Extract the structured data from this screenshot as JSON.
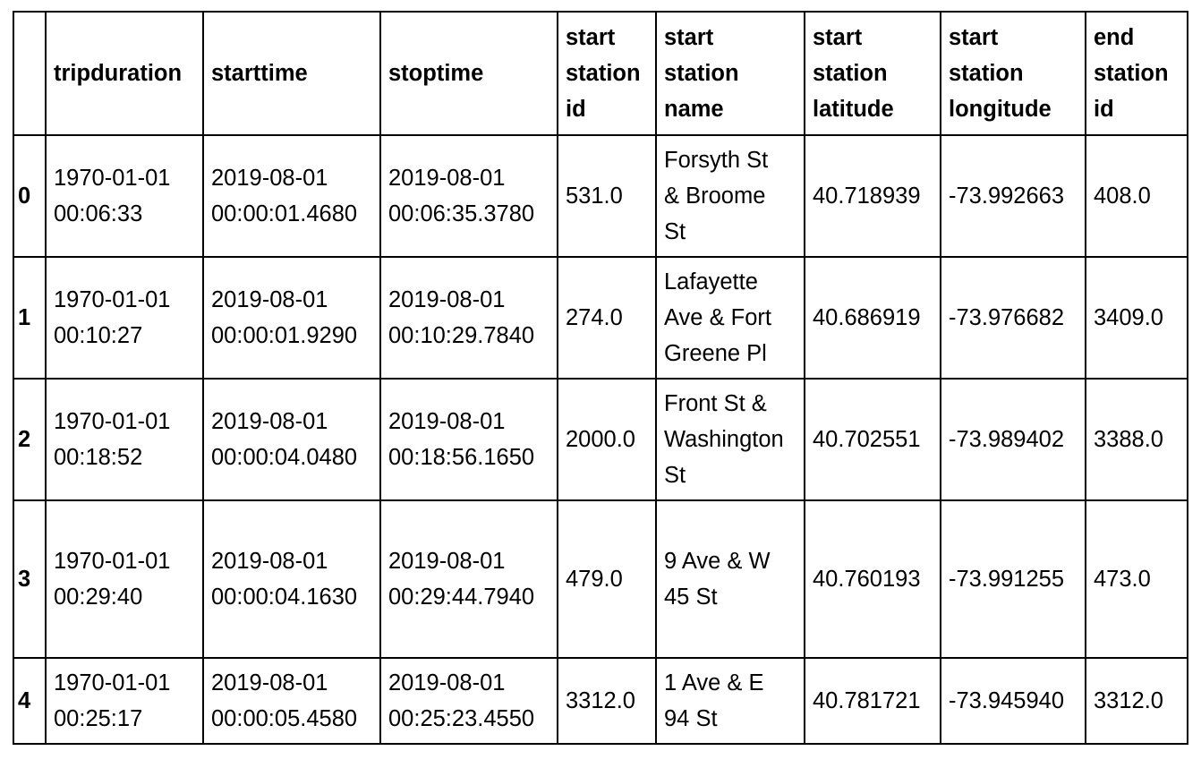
{
  "table": {
    "index_header": "",
    "columns": [
      [
        "tripduration"
      ],
      [
        "starttime"
      ],
      [
        "stoptime"
      ],
      [
        "start",
        "station",
        "id"
      ],
      [
        "start",
        "station",
        "name"
      ],
      [
        "start",
        "station",
        "latitude"
      ],
      [
        "start",
        "station",
        "longitude"
      ],
      [
        "end",
        "station",
        "id"
      ]
    ],
    "rows": [
      {
        "index": "0",
        "cells": [
          [
            "1970-01-01",
            "00:06:33"
          ],
          [
            "2019-08-01",
            "00:00:01.4680"
          ],
          [
            "2019-08-01",
            "00:06:35.3780"
          ],
          [
            "531.0"
          ],
          [
            "Forsyth St",
            "& Broome",
            "St"
          ],
          [
            "40.718939"
          ],
          [
            "-73.992663"
          ],
          [
            "408.0"
          ]
        ]
      },
      {
        "index": "1",
        "cells": [
          [
            "1970-01-01",
            "00:10:27"
          ],
          [
            "2019-08-01",
            "00:00:01.9290"
          ],
          [
            "2019-08-01",
            "00:10:29.7840"
          ],
          [
            "274.0"
          ],
          [
            "Lafayette",
            "Ave & Fort",
            "Greene Pl"
          ],
          [
            "40.686919"
          ],
          [
            "-73.976682"
          ],
          [
            "3409.0"
          ]
        ]
      },
      {
        "index": "2",
        "cells": [
          [
            "1970-01-01",
            "00:18:52"
          ],
          [
            "2019-08-01",
            "00:00:04.0480"
          ],
          [
            "2019-08-01",
            "00:18:56.1650"
          ],
          [
            "2000.0"
          ],
          [
            "Front St &",
            "Washington",
            "St"
          ],
          [
            "40.702551"
          ],
          [
            "-73.989402"
          ],
          [
            "3388.0"
          ]
        ]
      },
      {
        "index": "3",
        "cells": [
          [
            "1970-01-01",
            "00:29:40"
          ],
          [
            "2019-08-01",
            "00:00:04.1630"
          ],
          [
            "2019-08-01",
            "00:29:44.7940"
          ],
          [
            "479.0"
          ],
          [
            "9 Ave & W",
            "45 St"
          ],
          [
            "40.760193"
          ],
          [
            "-73.991255"
          ],
          [
            "473.0"
          ]
        ]
      },
      {
        "index": "4",
        "cells": [
          [
            "1970-01-01",
            "00:25:17"
          ],
          [
            "2019-08-01",
            "00:00:05.4580"
          ],
          [
            "2019-08-01",
            "00:25:23.4550"
          ],
          [
            "3312.0"
          ],
          [
            "1 Ave & E",
            "94 St"
          ],
          [
            "40.781721"
          ],
          [
            "-73.945940"
          ],
          [
            "3312.0"
          ]
        ]
      }
    ]
  }
}
